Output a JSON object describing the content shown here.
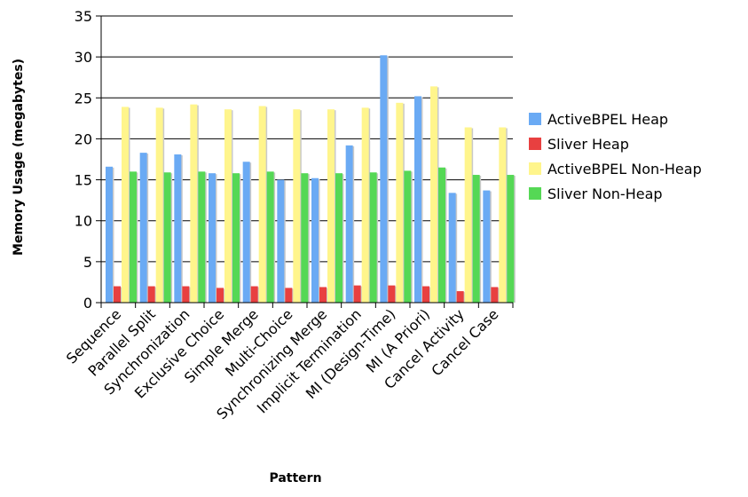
{
  "chart_data": {
    "type": "bar",
    "title": "",
    "xlabel": "Pattern",
    "ylabel": "Memory Usage (megabytes)",
    "ylim": [
      0,
      35
    ],
    "yticks": [
      0,
      5,
      10,
      15,
      20,
      25,
      30,
      35
    ],
    "grid": "horizontal",
    "legend_position": "right",
    "categories": [
      "Sequence",
      "Parallel Split",
      "Synchronization",
      "Exclusive Choice",
      "Simple Merge",
      "Multi-Choice",
      "Synchronizing Merge",
      "Implicit Termination",
      "MI (Design-Time)",
      "MI (A Priori)",
      "Cancel Activity",
      "Cancel Case"
    ],
    "series": [
      {
        "name": "ActiveBPEL Heap",
        "color": "#6aaaf4",
        "values": [
          16.6,
          18.3,
          18.1,
          15.8,
          17.2,
          15.0,
          15.2,
          19.2,
          30.2,
          25.2,
          13.4,
          13.7
        ]
      },
      {
        "name": "Sliver Heap",
        "color": "#e84040",
        "values": [
          2.0,
          2.0,
          2.0,
          1.8,
          2.0,
          1.8,
          1.9,
          2.1,
          2.1,
          2.0,
          1.4,
          1.9
        ]
      },
      {
        "name": "ActiveBPEL Non-Heap",
        "color": "#fff58c",
        "values": [
          23.9,
          23.8,
          24.2,
          23.6,
          24.0,
          23.6,
          23.6,
          23.8,
          24.4,
          26.4,
          21.4,
          21.4
        ]
      },
      {
        "name": "Sliver Non-Heap",
        "color": "#55d855",
        "values": [
          16.0,
          15.9,
          16.0,
          15.8,
          16.0,
          15.8,
          15.8,
          15.9,
          16.1,
          16.5,
          15.6,
          15.6
        ]
      }
    ]
  }
}
